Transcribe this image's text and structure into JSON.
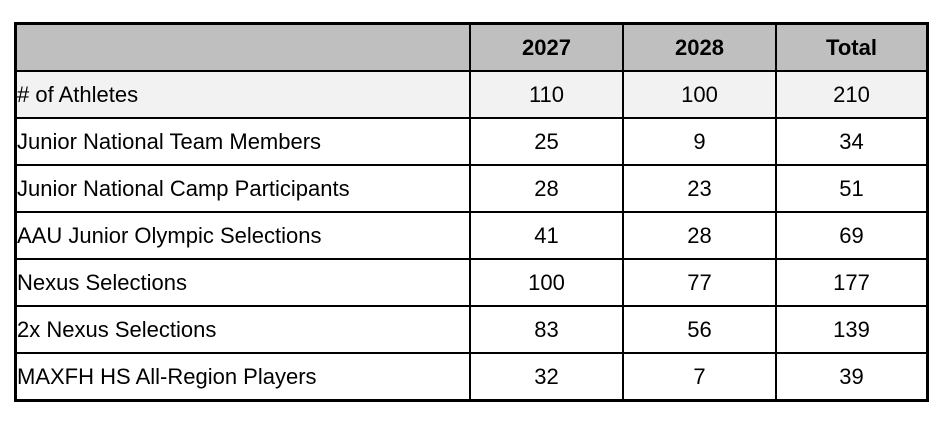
{
  "table": {
    "columns": [
      "",
      "2027",
      "2028",
      "Total"
    ],
    "rows": [
      {
        "label": "# of Athletes",
        "values": [
          "110",
          "100",
          "210"
        ],
        "highlight": true
      },
      {
        "label": "Junior National Team Members",
        "values": [
          "25",
          "9",
          "34"
        ],
        "highlight": false
      },
      {
        "label": "Junior National Camp Participants",
        "values": [
          "28",
          "23",
          "51"
        ],
        "highlight": false
      },
      {
        "label": "AAU Junior Olympic Selections",
        "values": [
          "41",
          "28",
          "69"
        ],
        "highlight": false
      },
      {
        "label": "Nexus Selections",
        "values": [
          "100",
          "77",
          "177"
        ],
        "highlight": false
      },
      {
        "label": "2x Nexus Selections",
        "values": [
          "83",
          "56",
          "139"
        ],
        "highlight": false
      },
      {
        "label": "MAXFH HS All-Region Players",
        "values": [
          "32",
          "7",
          "39"
        ],
        "highlight": false
      }
    ]
  },
  "colors": {
    "header_bg": "#bfbfbf",
    "highlight_row_bg": "#f2f2f2",
    "row_bg": "#ffffff",
    "border": "#000000"
  }
}
